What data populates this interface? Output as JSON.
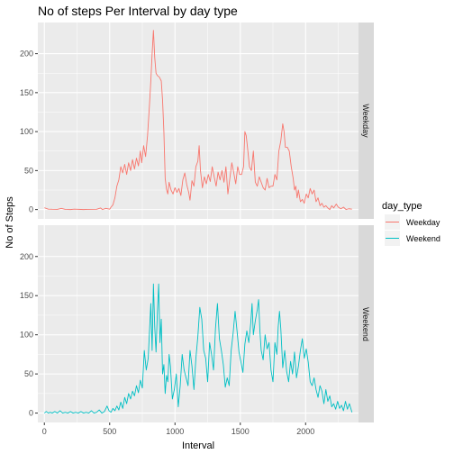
{
  "chart_data": {
    "type": "line",
    "title": "No of steps Per Interval by day type",
    "xlabel": "Interval",
    "ylabel": "No of Steps",
    "xlim": [
      -50,
      2405
    ],
    "ylim": [
      -12,
      240
    ],
    "x_ticks": [
      0,
      500,
      1000,
      1500,
      2000
    ],
    "y_ticks": [
      0,
      50,
      100,
      150,
      200
    ],
    "grid": true,
    "legend": {
      "title": "day_type",
      "position": "right"
    },
    "facets": [
      "Weekday",
      "Weekend"
    ],
    "series": [
      {
        "name": "Weekday",
        "color": "#F8766D",
        "points": [
          [
            0,
            2.3
          ],
          [
            30,
            0.5
          ],
          [
            60,
            0.3
          ],
          [
            100,
            0.2
          ],
          [
            130,
            1.5
          ],
          [
            160,
            0.2
          ],
          [
            200,
            0
          ],
          [
            230,
            0.5
          ],
          [
            300,
            0
          ],
          [
            330,
            0.2
          ],
          [
            400,
            0.3
          ],
          [
            430,
            2.0
          ],
          [
            445,
            0
          ],
          [
            470,
            1.5
          ],
          [
            500,
            0.5
          ],
          [
            510,
            3.0
          ],
          [
            525,
            6.0
          ],
          [
            540,
            15
          ],
          [
            555,
            30
          ],
          [
            570,
            38
          ],
          [
            585,
            55
          ],
          [
            600,
            47
          ],
          [
            615,
            58
          ],
          [
            630,
            45
          ],
          [
            645,
            60
          ],
          [
            660,
            50
          ],
          [
            675,
            64
          ],
          [
            690,
            52
          ],
          [
            705,
            66
          ],
          [
            720,
            56
          ],
          [
            735,
            75
          ],
          [
            745,
            60
          ],
          [
            760,
            82
          ],
          [
            775,
            68
          ],
          [
            790,
            95
          ],
          [
            805,
            135
          ],
          [
            815,
            165
          ],
          [
            825,
            200
          ],
          [
            835,
            230
          ],
          [
            845,
            195
          ],
          [
            855,
            175
          ],
          [
            865,
            172
          ],
          [
            880,
            170
          ],
          [
            895,
            165
          ],
          [
            905,
            140
          ],
          [
            915,
            100
          ],
          [
            925,
            40
          ],
          [
            935,
            26
          ],
          [
            945,
            20
          ],
          [
            955,
            35
          ],
          [
            970,
            25
          ],
          [
            985,
            20
          ],
          [
            1000,
            28
          ],
          [
            1015,
            22
          ],
          [
            1030,
            27
          ],
          [
            1045,
            18
          ],
          [
            1060,
            38
          ],
          [
            1075,
            47
          ],
          [
            1090,
            32
          ],
          [
            1105,
            22
          ],
          [
            1115,
            12
          ],
          [
            1130,
            37
          ],
          [
            1145,
            30
          ],
          [
            1160,
            55
          ],
          [
            1175,
            62
          ],
          [
            1185,
            82
          ],
          [
            1195,
            50
          ],
          [
            1210,
            28
          ],
          [
            1225,
            42
          ],
          [
            1240,
            33
          ],
          [
            1255,
            45
          ],
          [
            1270,
            36
          ],
          [
            1285,
            55
          ],
          [
            1300,
            42
          ],
          [
            1315,
            30
          ],
          [
            1330,
            48
          ],
          [
            1345,
            38
          ],
          [
            1360,
            50
          ],
          [
            1375,
            35
          ],
          [
            1390,
            55
          ],
          [
            1405,
            20
          ],
          [
            1420,
            40
          ],
          [
            1435,
            60
          ],
          [
            1450,
            47
          ],
          [
            1465,
            33
          ],
          [
            1480,
            55
          ],
          [
            1495,
            45
          ],
          [
            1510,
            45
          ],
          [
            1525,
            55
          ],
          [
            1535,
            100
          ],
          [
            1545,
            95
          ],
          [
            1555,
            80
          ],
          [
            1570,
            55
          ],
          [
            1585,
            50
          ],
          [
            1600,
            75
          ],
          [
            1615,
            35
          ],
          [
            1630,
            30
          ],
          [
            1645,
            42
          ],
          [
            1660,
            35
          ],
          [
            1675,
            28
          ],
          [
            1690,
            25
          ],
          [
            1705,
            40
          ],
          [
            1720,
            28
          ],
          [
            1735,
            30
          ],
          [
            1750,
            30
          ],
          [
            1765,
            45
          ],
          [
            1780,
            38
          ],
          [
            1795,
            75
          ],
          [
            1810,
            88
          ],
          [
            1825,
            110
          ],
          [
            1835,
            100
          ],
          [
            1845,
            80
          ],
          [
            1860,
            80
          ],
          [
            1875,
            75
          ],
          [
            1890,
            55
          ],
          [
            1905,
            40
          ],
          [
            1915,
            25
          ],
          [
            1925,
            30
          ],
          [
            1935,
            15
          ],
          [
            1945,
            25
          ],
          [
            1960,
            10
          ],
          [
            1975,
            13
          ],
          [
            1990,
            8
          ],
          [
            2005,
            20
          ],
          [
            2020,
            15
          ],
          [
            2035,
            27
          ],
          [
            2050,
            20
          ],
          [
            2065,
            25
          ],
          [
            2080,
            10
          ],
          [
            2095,
            15
          ],
          [
            2110,
            5
          ],
          [
            2125,
            8
          ],
          [
            2140,
            3
          ],
          [
            2155,
            5
          ],
          [
            2170,
            2
          ],
          [
            2185,
            0
          ],
          [
            2200,
            5
          ],
          [
            2215,
            2
          ],
          [
            2235,
            7
          ],
          [
            2250,
            3
          ],
          [
            2270,
            1
          ],
          [
            2290,
            3
          ],
          [
            2310,
            0
          ],
          [
            2330,
            1
          ],
          [
            2355,
            0.5
          ]
        ]
      },
      {
        "name": "Weekend",
        "color": "#00BFC4",
        "points": [
          [
            0,
            0
          ],
          [
            15,
            2.0
          ],
          [
            30,
            0
          ],
          [
            45,
            1.0
          ],
          [
            60,
            0
          ],
          [
            80,
            2.0
          ],
          [
            100,
            0
          ],
          [
            120,
            3.0
          ],
          [
            140,
            0
          ],
          [
            160,
            1.0
          ],
          [
            180,
            0
          ],
          [
            200,
            2.0
          ],
          [
            220,
            0
          ],
          [
            240,
            1.0
          ],
          [
            260,
            0
          ],
          [
            280,
            2.0
          ],
          [
            300,
            0
          ],
          [
            320,
            1.0
          ],
          [
            340,
            0
          ],
          [
            360,
            3.0
          ],
          [
            380,
            0
          ],
          [
            400,
            1.0
          ],
          [
            420,
            4.0
          ],
          [
            440,
            0
          ],
          [
            460,
            2.0
          ],
          [
            480,
            9.0
          ],
          [
            495,
            3.0
          ],
          [
            510,
            1.0
          ],
          [
            525,
            6.0
          ],
          [
            540,
            3.0
          ],
          [
            555,
            9.0
          ],
          [
            570,
            4.0
          ],
          [
            585,
            14
          ],
          [
            600,
            6.0
          ],
          [
            615,
            20
          ],
          [
            630,
            12
          ],
          [
            645,
            25
          ],
          [
            660,
            18
          ],
          [
            675,
            28
          ],
          [
            690,
            22
          ],
          [
            705,
            35
          ],
          [
            720,
            26
          ],
          [
            735,
            42
          ],
          [
            750,
            32
          ],
          [
            765,
            80
          ],
          [
            780,
            55
          ],
          [
            795,
            70
          ],
          [
            805,
            105
          ],
          [
            815,
            140
          ],
          [
            825,
            80
          ],
          [
            835,
            165
          ],
          [
            845,
            110
          ],
          [
            855,
            78
          ],
          [
            865,
            128
          ],
          [
            875,
            165
          ],
          [
            885,
            90
          ],
          [
            895,
            120
          ],
          [
            905,
            50
          ],
          [
            915,
            62
          ],
          [
            925,
            25
          ],
          [
            935,
            48
          ],
          [
            945,
            40
          ],
          [
            955,
            75
          ],
          [
            965,
            60
          ],
          [
            980,
            18
          ],
          [
            995,
            30
          ],
          [
            1010,
            50
          ],
          [
            1025,
            8
          ],
          [
            1040,
            35
          ],
          [
            1055,
            75
          ],
          [
            1070,
            55
          ],
          [
            1085,
            45
          ],
          [
            1100,
            35
          ],
          [
            1115,
            80
          ],
          [
            1130,
            60
          ],
          [
            1145,
            30
          ],
          [
            1160,
            70
          ],
          [
            1175,
            98
          ],
          [
            1190,
            135
          ],
          [
            1205,
            120
          ],
          [
            1220,
            80
          ],
          [
            1235,
            70
          ],
          [
            1250,
            40
          ],
          [
            1265,
            90
          ],
          [
            1280,
            75
          ],
          [
            1295,
            55
          ],
          [
            1310,
            108
          ],
          [
            1325,
            140
          ],
          [
            1340,
            95
          ],
          [
            1355,
            80
          ],
          [
            1370,
            62
          ],
          [
            1385,
            33
          ],
          [
            1400,
            45
          ],
          [
            1415,
            35
          ],
          [
            1430,
            80
          ],
          [
            1445,
            102
          ],
          [
            1460,
            130
          ],
          [
            1475,
            105
          ],
          [
            1490,
            78
          ],
          [
            1505,
            65
          ],
          [
            1520,
            52
          ],
          [
            1535,
            88
          ],
          [
            1550,
            105
          ],
          [
            1565,
            90
          ],
          [
            1580,
            115
          ],
          [
            1590,
            140
          ],
          [
            1600,
            100
          ],
          [
            1615,
            118
          ],
          [
            1630,
            132
          ],
          [
            1640,
            145
          ],
          [
            1650,
            105
          ],
          [
            1660,
            80
          ],
          [
            1675,
            68
          ],
          [
            1690,
            100
          ],
          [
            1705,
            82
          ],
          [
            1720,
            90
          ],
          [
            1735,
            55
          ],
          [
            1750,
            40
          ],
          [
            1765,
            90
          ],
          [
            1780,
            75
          ],
          [
            1790,
            110
          ],
          [
            1800,
            130
          ],
          [
            1810,
            108
          ],
          [
            1825,
            58
          ],
          [
            1840,
            80
          ],
          [
            1855,
            53
          ],
          [
            1870,
            40
          ],
          [
            1885,
            66
          ],
          [
            1900,
            50
          ],
          [
            1915,
            78
          ],
          [
            1930,
            45
          ],
          [
            1945,
            60
          ],
          [
            1960,
            80
          ],
          [
            1975,
            95
          ],
          [
            1990,
            70
          ],
          [
            2005,
            82
          ],
          [
            2020,
            65
          ],
          [
            2035,
            40
          ],
          [
            2050,
            35
          ],
          [
            2065,
            45
          ],
          [
            2080,
            30
          ],
          [
            2095,
            20
          ],
          [
            2110,
            35
          ],
          [
            2125,
            28
          ],
          [
            2140,
            12
          ],
          [
            2155,
            30
          ],
          [
            2170,
            15
          ],
          [
            2185,
            22
          ],
          [
            2200,
            8
          ],
          [
            2215,
            12
          ],
          [
            2230,
            5
          ],
          [
            2245,
            15
          ],
          [
            2260,
            6
          ],
          [
            2275,
            10
          ],
          [
            2290,
            3
          ],
          [
            2305,
            15
          ],
          [
            2320,
            5
          ],
          [
            2335,
            12
          ],
          [
            2355,
            1
          ]
        ]
      }
    ]
  }
}
